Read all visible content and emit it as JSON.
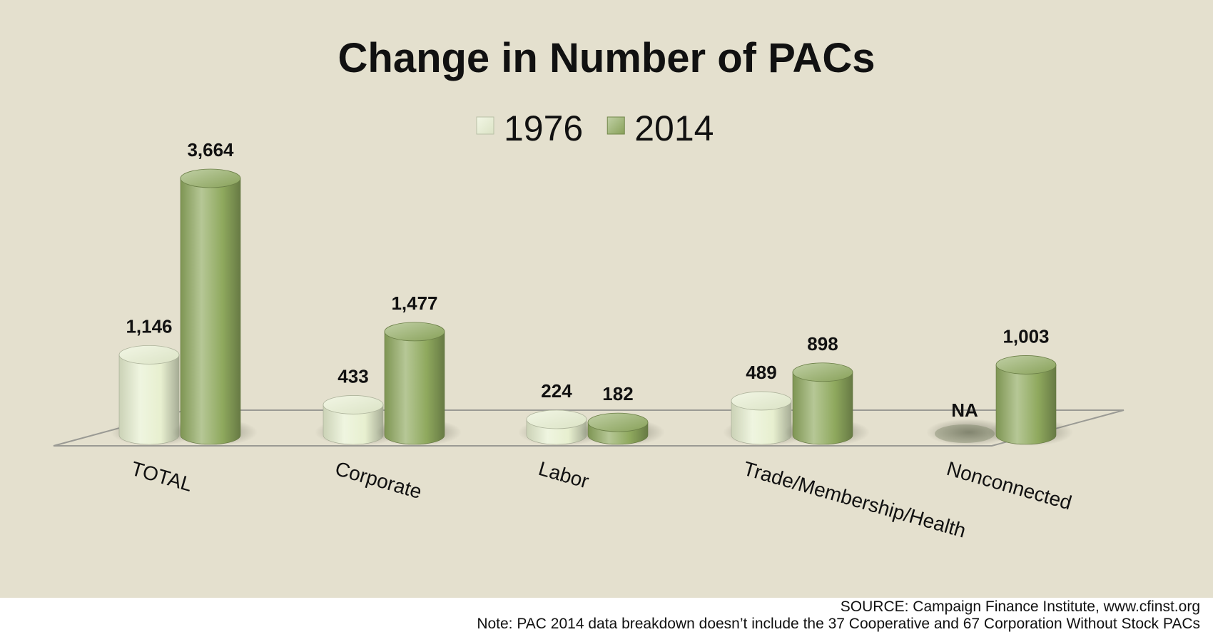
{
  "chart_data": {
    "type": "bar",
    "title": "Change in Number of PACs",
    "categories": [
      "TOTAL",
      "Corporate",
      "Labor",
      "Trade/Membership/Health",
      "Nonconnected"
    ],
    "series": [
      {
        "name": "1976",
        "values": [
          1146,
          433,
          224,
          489,
          null
        ],
        "labels": [
          "1,146",
          "433",
          "224",
          "489",
          "NA"
        ]
      },
      {
        "name": "2014",
        "values": [
          3664,
          1477,
          182,
          898,
          1003
        ],
        "labels": [
          "3,664",
          "1,477",
          "182",
          "898",
          "1,003"
        ]
      }
    ],
    "xlabel": "",
    "ylabel": "",
    "ylim": [
      0,
      3664
    ],
    "grid": false,
    "legend": "top-center",
    "style": "3d-cylinder",
    "colors": {
      "background": "#e4e0ce",
      "footer_background": "#ffffff",
      "series_1976": "#e7efcf",
      "series_2014": "#8fa95e",
      "floor_stroke": "#9a9a94",
      "text": "#111111"
    }
  },
  "footer": {
    "source": "SOURCE: Campaign Finance Institute, www.cfinst.org",
    "note": "Note: PAC 2014 data breakdown doesn’t include the 37 Cooperative and 67 Corporation Without Stock PACs"
  }
}
